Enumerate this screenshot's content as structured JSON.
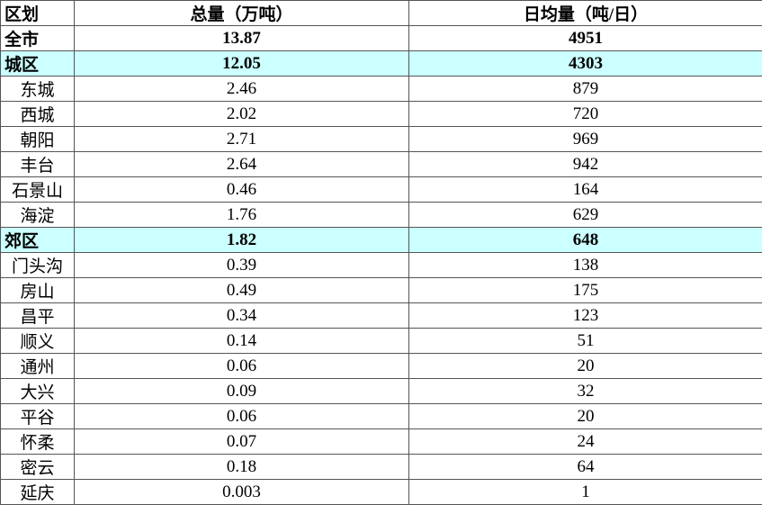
{
  "table": {
    "header": [
      "区划",
      "总量（万吨）",
      "日均量（吨/日）"
    ],
    "rows": [
      [
        "全市",
        "13.87",
        "4951"
      ],
      [
        "城区",
        "12.05",
        "4303"
      ],
      [
        "东城",
        "2.46",
        "879"
      ],
      [
        "西城",
        "2.02",
        "720"
      ],
      [
        "朝阳",
        "2.71",
        "969"
      ],
      [
        "丰台",
        "2.64",
        "942"
      ],
      [
        "石景山",
        "0.46",
        "164"
      ],
      [
        "海淀",
        "1.76",
        "629"
      ],
      [
        "郊区",
        "1.82",
        "648"
      ],
      [
        "门头沟",
        "0.39",
        "138"
      ],
      [
        "房山",
        "0.49",
        "175"
      ],
      [
        "昌平",
        "0.34",
        "123"
      ],
      [
        "顺义",
        "0.14",
        "51"
      ],
      [
        "通州",
        "0.06",
        "20"
      ],
      [
        "大兴",
        "0.09",
        "32"
      ],
      [
        "平谷",
        "0.06",
        "20"
      ],
      [
        "怀柔",
        "0.07",
        "24"
      ],
      [
        "密云",
        "0.18",
        "64"
      ],
      [
        "延庆",
        "0.003",
        "1"
      ]
    ]
  }
}
